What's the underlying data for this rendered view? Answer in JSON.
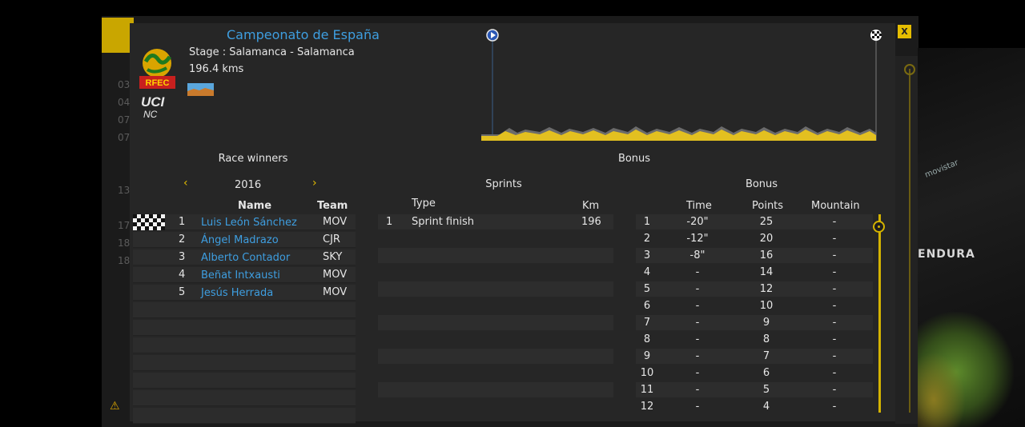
{
  "race": {
    "title": "Campeonato de España",
    "stage": "Stage : Salamanca - Salamanca",
    "distance": "196.4 kms",
    "logo_text": "RFEC",
    "uci_text": "UCI",
    "uci_sub": "NC"
  },
  "close_label": "X",
  "background": {
    "numbers": [
      "03",
      "04",
      "07",
      "07",
      "",
      "",
      "13",
      "",
      "17",
      "18",
      "18"
    ],
    "brand": "ENDURA",
    "brand2": "movistar",
    "warning_icon": "⚠"
  },
  "headers": {
    "race_winners": "Race winners",
    "bonus_top": "Bonus",
    "sprints": "Sprints",
    "bonus": "Bonus"
  },
  "year": {
    "value": "2016",
    "prev_icon": "‹",
    "next_icon": "›"
  },
  "winners": {
    "columns": {
      "name": "Name",
      "team": "Team"
    },
    "rows": [
      {
        "pos": "1",
        "name": "Luis León Sánchez",
        "team": "MOV"
      },
      {
        "pos": "2",
        "name": "Ángel Madrazo",
        "team": "CJR"
      },
      {
        "pos": "3",
        "name": "Alberto Contador",
        "team": "SKY"
      },
      {
        "pos": "4",
        "name": "Beñat Intxausti",
        "team": "MOV"
      },
      {
        "pos": "5",
        "name": "Jesús Herrada",
        "team": "MOV"
      }
    ]
  },
  "sprints": {
    "columns": {
      "type": "Type",
      "km": "Km"
    },
    "rows": [
      {
        "num": "1",
        "type": "Sprint finish",
        "km": "196"
      }
    ]
  },
  "bonus": {
    "columns": {
      "time": "Time",
      "points": "Points",
      "mountain": "Mountain"
    },
    "rows": [
      {
        "pos": "1",
        "time": "-20\"",
        "points": "25",
        "mountain": "-"
      },
      {
        "pos": "2",
        "time": "-12\"",
        "points": "20",
        "mountain": "-"
      },
      {
        "pos": "3",
        "time": "-8\"",
        "points": "16",
        "mountain": "-"
      },
      {
        "pos": "4",
        "time": "-",
        "points": "14",
        "mountain": "-"
      },
      {
        "pos": "5",
        "time": "-",
        "points": "12",
        "mountain": "-"
      },
      {
        "pos": "6",
        "time": "-",
        "points": "10",
        "mountain": "-"
      },
      {
        "pos": "7",
        "time": "-",
        "points": "9",
        "mountain": "-"
      },
      {
        "pos": "8",
        "time": "-",
        "points": "8",
        "mountain": "-"
      },
      {
        "pos": "9",
        "time": "-",
        "points": "7",
        "mountain": "-"
      },
      {
        "pos": "10",
        "time": "-",
        "points": "6",
        "mountain": "-"
      },
      {
        "pos": "11",
        "time": "-",
        "points": "5",
        "mountain": "-"
      },
      {
        "pos": "12",
        "time": "-",
        "points": "4",
        "mountain": "-"
      }
    ]
  },
  "colors": {
    "accent": "#e5bd00",
    "link": "#3e9ee0",
    "panel": "#262626",
    "profile_fill": "#e3c020"
  }
}
